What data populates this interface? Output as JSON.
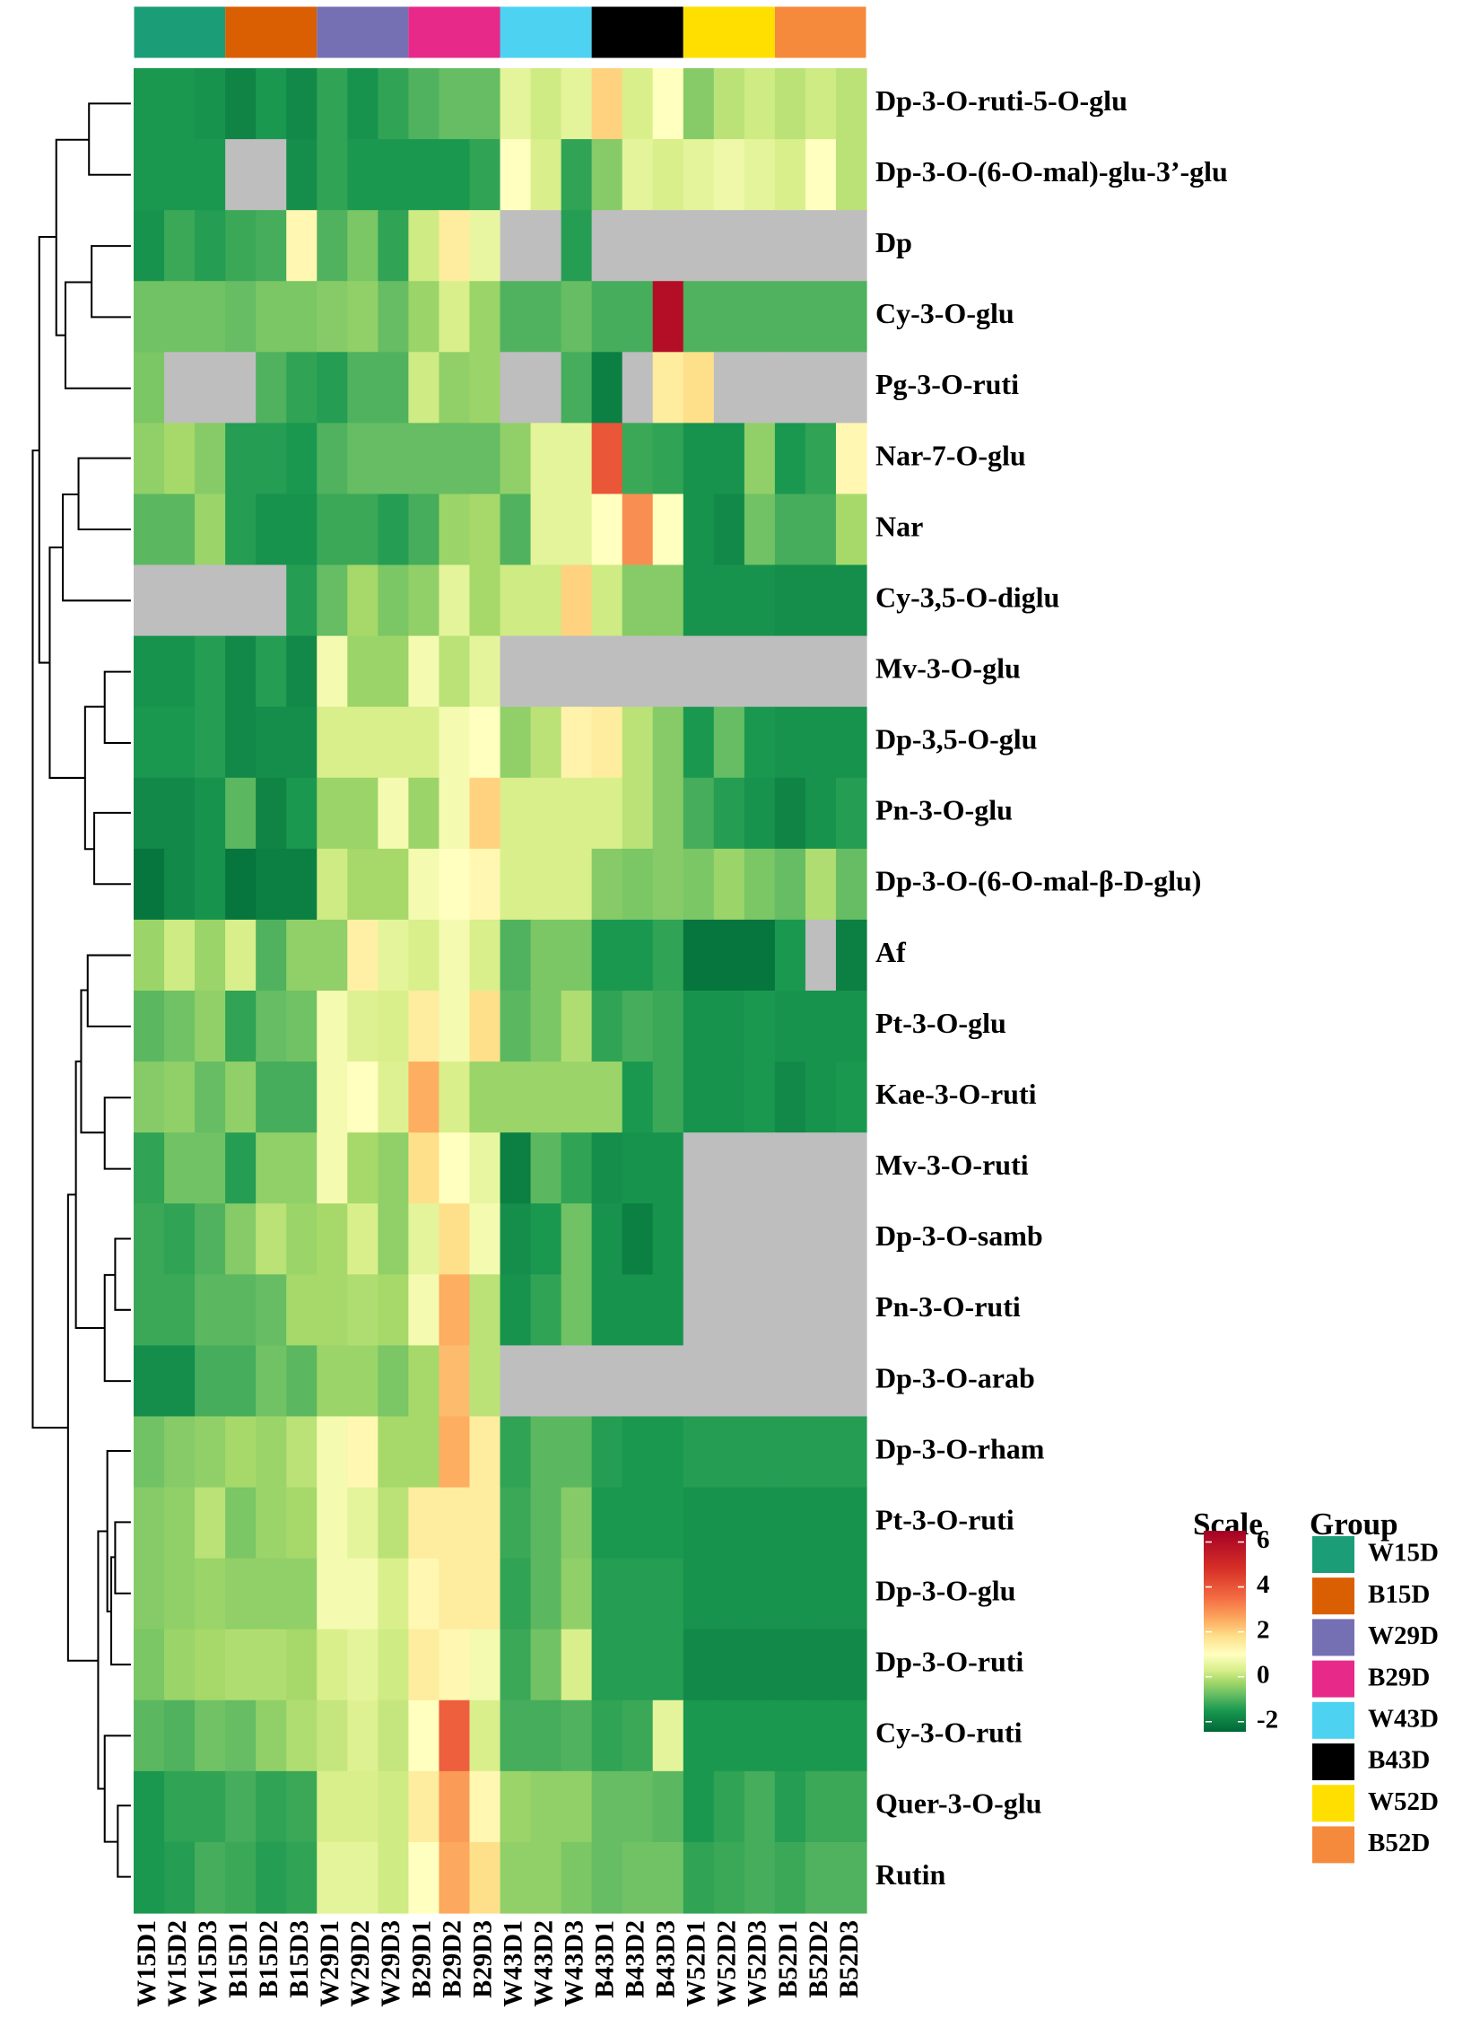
{
  "chart_data": {
    "type": "heatmap",
    "rows": [
      "Dp-3-O-ruti-5-O-glu",
      "Dp-3-O-(6-O-mal)-glu-3’-glu",
      "Dp",
      "Cy-3-O-glu",
      "Pg-3-O-ruti",
      "Nar-7-O-glu",
      "Nar",
      "Cy-3,5-O-diglu",
      "Mv-3-O-glu",
      "Dp-3,5-O-glu",
      "Pn-3-O-glu",
      "Dp-3-O-(6-O-mal-β-D-glu)",
      "Af",
      "Pt-3-O-glu",
      "Kae-3-O-ruti",
      "Mv-3-O-ruti",
      "Dp-3-O-samb",
      "Pn-3-O-ruti",
      "Dp-3-O-arab",
      "Dp-3-O-rham",
      "Pt-3-O-ruti",
      "Dp-3-O-glu",
      "Dp-3-O-ruti",
      "Cy-3-O-ruti",
      "Quer-3-O-glu",
      "Rutin"
    ],
    "columns": [
      "W15D1",
      "W15D2",
      "W15D3",
      "B15D1",
      "B15D2",
      "B15D3",
      "W29D1",
      "W29D2",
      "W29D3",
      "B29D1",
      "B29D2",
      "B29D3",
      "W43D1",
      "W43D2",
      "W43D3",
      "B43D1",
      "B43D2",
      "B43D3",
      "W52D1",
      "W52D2",
      "W52D3",
      "B52D1",
      "B52D2",
      "B52D3"
    ],
    "values": [
      [
        -1.5,
        -1.5,
        -1.6,
        -1.9,
        -1.5,
        -1.8,
        -1.3,
        -1.6,
        -1.3,
        -1,
        -0.8,
        -0.8,
        0.5,
        0.2,
        0.5,
        2,
        0.3,
        1,
        -0.5,
        0,
        0.2,
        0,
        0.2,
        0
      ],
      [
        -1.5,
        -1.5,
        -1.5,
        null,
        null,
        -1.7,
        -1.3,
        -1.5,
        -1.5,
        -1.5,
        -1.5,
        -1.3,
        1,
        0.3,
        -1.3,
        -0.5,
        0.5,
        0.3,
        0.5,
        0.7,
        0.5,
        0.3,
        1,
        0
      ],
      [
        -1.6,
        -1.2,
        -1.4,
        -1.2,
        -1.1,
        1.2,
        -1,
        -0.6,
        -1.3,
        0.2,
        1.5,
        0.6,
        null,
        null,
        -1.4,
        null,
        null,
        null,
        null,
        null,
        null,
        null,
        null,
        null
      ],
      [
        -0.7,
        -0.7,
        -0.7,
        -0.8,
        -0.6,
        -0.6,
        -0.5,
        -0.4,
        -0.8,
        -0.3,
        0.3,
        -0.3,
        -1,
        -1,
        -0.8,
        -1.1,
        -1.1,
        6,
        -1,
        -1,
        -1,
        -1,
        -1,
        -1
      ],
      [
        -0.6,
        null,
        null,
        null,
        -1,
        -1.3,
        -1.4,
        -1,
        -1,
        0.2,
        -0.4,
        -0.3,
        null,
        null,
        -1.1,
        -2,
        null,
        1.5,
        1.8,
        null,
        null,
        null,
        null,
        null
      ],
      [
        -0.4,
        -0.2,
        -0.5,
        -1.4,
        -1.4,
        -1.5,
        -1,
        -0.8,
        -0.8,
        -0.8,
        -0.8,
        -0.8,
        -0.4,
        0.5,
        0.5,
        4,
        -1.2,
        -1.3,
        -1.6,
        -1.6,
        -0.4,
        -1.5,
        -1.3,
        1.2
      ],
      [
        -0.9,
        -0.9,
        -0.3,
        -1.4,
        -1.6,
        -1.6,
        -1.2,
        -1.2,
        -1.4,
        -1.1,
        -0.3,
        -0.2,
        -1,
        0.5,
        0.5,
        1,
        3,
        1,
        -1.6,
        -1.8,
        -0.7,
        -1.1,
        -1.1,
        -0.2
      ],
      [
        null,
        null,
        null,
        null,
        null,
        -1.4,
        -0.8,
        -0.2,
        -0.6,
        -0.4,
        0.5,
        -0.2,
        0.2,
        0.2,
        2,
        0.2,
        -0.5,
        -0.5,
        -1.6,
        -1.6,
        -1.6,
        -1.7,
        -1.7,
        -1.7
      ],
      [
        -1.6,
        -1.6,
        -1.4,
        -1.8,
        -1.4,
        -1.8,
        0.8,
        -0.3,
        -0.3,
        0.8,
        0,
        0.5,
        null,
        null,
        null,
        null,
        null,
        null,
        null,
        null,
        null,
        null,
        null,
        null
      ],
      [
        -1.5,
        -1.5,
        -1.4,
        -1.8,
        -1.7,
        -1.7,
        0.3,
        0.3,
        0.3,
        0.3,
        0.8,
        1,
        -0.4,
        0,
        1.3,
        1.5,
        0,
        -0.5,
        -1.5,
        -0.8,
        -1.5,
        -1.6,
        -1.6,
        -1.6
      ],
      [
        -1.8,
        -1.8,
        -1.6,
        -0.9,
        -1.9,
        -1.5,
        -0.3,
        -0.3,
        0.8,
        -0.3,
        0.8,
        2,
        0.3,
        0.3,
        0.3,
        0.3,
        0,
        -0.5,
        -1.1,
        -1.4,
        -1.6,
        -1.9,
        -1.6,
        -1.4
      ],
      [
        -2.2,
        -1.8,
        -1.6,
        -2.2,
        -2,
        -2,
        0.2,
        -0.2,
        -0.2,
        0.8,
        1,
        1.2,
        0.3,
        0.3,
        0.3,
        -0.5,
        -0.6,
        -0.5,
        -0.6,
        -0.3,
        -0.6,
        -0.8,
        -0.1,
        -0.8
      ],
      [
        -0.3,
        0.2,
        -0.3,
        0.3,
        -1,
        -0.4,
        -0.4,
        1.4,
        0.5,
        0.3,
        0.8,
        0.3,
        -1,
        -0.6,
        -0.6,
        -1.5,
        -1.5,
        -1.3,
        -2.2,
        -2.2,
        -2.2,
        -1.5,
        null,
        -2
      ],
      [
        -0.9,
        -0.7,
        -0.4,
        -1.3,
        -0.8,
        -0.7,
        0.8,
        0.4,
        0.3,
        1.5,
        0.8,
        1.8,
        -0.9,
        -0.6,
        -0.1,
        -1.3,
        -1.1,
        -1.2,
        -1.6,
        -1.6,
        -1.5,
        -1.6,
        -1.6,
        -1.6
      ],
      [
        -0.5,
        -0.4,
        -0.8,
        -0.4,
        -1.1,
        -1.1,
        0.8,
        1,
        0.4,
        2.5,
        0.3,
        -0.3,
        -0.3,
        -0.3,
        -0.3,
        -0.3,
        -1.5,
        -1.2,
        -1.6,
        -1.6,
        -1.5,
        -1.8,
        -1.6,
        -1.5
      ],
      [
        -1.3,
        -0.7,
        -0.7,
        -1.4,
        -0.4,
        -0.4,
        0.8,
        -0.2,
        -0.4,
        1.8,
        1,
        0.6,
        -2,
        -0.9,
        -1.3,
        -1.7,
        -1.6,
        -1.6,
        null,
        null,
        null,
        null,
        null,
        null
      ],
      [
        -1.2,
        -1.3,
        -1,
        -0.5,
        0,
        -0.3,
        -0.2,
        0.3,
        -0.4,
        0.5,
        1.8,
        0.8,
        -1.7,
        -1.5,
        -0.7,
        -1.6,
        -2,
        -1.6,
        null,
        null,
        null,
        null,
        null,
        null
      ],
      [
        -1.2,
        -1.2,
        -0.9,
        -0.9,
        -0.8,
        -0.2,
        -0.2,
        -0.1,
        -0.2,
        0.8,
        2.5,
        0,
        -1.6,
        -1.3,
        -0.7,
        -1.6,
        -1.6,
        -1.6,
        null,
        null,
        null,
        null,
        null,
        null
      ],
      [
        -1.7,
        -1.7,
        -1.1,
        -1.1,
        -0.7,
        -0.9,
        -0.3,
        -0.3,
        -0.6,
        -0.2,
        2.3,
        0,
        null,
        null,
        null,
        null,
        null,
        null,
        null,
        null,
        null,
        null,
        null,
        null
      ],
      [
        -0.7,
        -0.5,
        -0.4,
        -0.2,
        -0.3,
        0,
        0.8,
        1.2,
        -0.2,
        -0.2,
        2.5,
        1.5,
        -1.3,
        -0.9,
        -0.9,
        -1.4,
        -1.5,
        -1.5,
        -1.4,
        -1.4,
        -1.4,
        -1.4,
        -1.4,
        -1.4
      ],
      [
        -0.5,
        -0.4,
        0,
        -0.6,
        -0.3,
        -0.2,
        0.8,
        0.5,
        0,
        1.5,
        1.5,
        1.5,
        -1.2,
        -0.9,
        -0.5,
        -1.5,
        -1.5,
        -1.5,
        -1.6,
        -1.6,
        -1.6,
        -1.6,
        -1.6,
        -1.6
      ],
      [
        -0.5,
        -0.4,
        -0.3,
        -0.4,
        -0.4,
        -0.4,
        0.8,
        0.8,
        0.3,
        1.2,
        1.5,
        1.5,
        -1.3,
        -0.9,
        -0.4,
        -1.4,
        -1.4,
        -1.4,
        -1.6,
        -1.6,
        -1.6,
        -1.6,
        -1.6,
        -1.6
      ],
      [
        -0.6,
        -0.3,
        -0.2,
        -0.1,
        -0.1,
        -0.2,
        0.3,
        0.5,
        0.2,
        1.5,
        1.2,
        0.8,
        -1.2,
        -0.7,
        0.3,
        -1.4,
        -1.4,
        -1.4,
        -1.8,
        -1.8,
        -1.8,
        -1.8,
        -1.8,
        -1.8
      ],
      [
        -0.9,
        -1,
        -0.7,
        -0.8,
        -0.4,
        -0.1,
        0.1,
        0.4,
        0.1,
        1,
        3.8,
        0.3,
        -1.1,
        -1.1,
        -1,
        -1.3,
        -1.2,
        0.5,
        -1.5,
        -1.5,
        -1.5,
        -1.5,
        -1.5,
        -1.5
      ],
      [
        -1.5,
        -1.3,
        -1.3,
        -1.1,
        -1.3,
        -1.2,
        0.3,
        0.3,
        0.2,
        1.5,
        2.8,
        1.2,
        -0.3,
        -0.4,
        -0.4,
        -0.8,
        -0.8,
        -0.9,
        -1.5,
        -1.3,
        -1.1,
        -1.4,
        -1.2,
        -1.2
      ],
      [
        -1.5,
        -1.4,
        -1.1,
        -1.2,
        -1.4,
        -1.3,
        0.5,
        0.5,
        0.2,
        1,
        2.6,
        1.8,
        -0.4,
        -0.4,
        -0.6,
        -0.8,
        -0.7,
        -0.7,
        -1.3,
        -1.2,
        -1.1,
        -1.2,
        -1,
        -1
      ]
    ],
    "missing_color": "#bebebe",
    "clim": [
      -2.45,
      6.5
    ],
    "colorscale": [
      {
        "value": -2.45,
        "color": "#006837"
      },
      {
        "value": -1.5,
        "color": "#1a9850"
      },
      {
        "value": -0.8,
        "color": "#66bd63"
      },
      {
        "value": -0.2,
        "color": "#a6d96a"
      },
      {
        "value": 0.3,
        "color": "#d9ef8b"
      },
      {
        "value": 1,
        "color": "#ffffbf"
      },
      {
        "value": 1.8,
        "color": "#fee08b"
      },
      {
        "value": 2.5,
        "color": "#fdae61"
      },
      {
        "value": 3.5,
        "color": "#f46d43"
      },
      {
        "value": 4.8,
        "color": "#d73027"
      },
      {
        "value": 6.5,
        "color": "#a50026"
      }
    ],
    "scale_title": "Scale",
    "scale_ticks": [
      -2,
      0,
      2,
      4,
      6
    ],
    "group_title": "Group",
    "groups": [
      {
        "name": "W15D",
        "color": "#1b9e77"
      },
      {
        "name": "B15D",
        "color": "#d95f02"
      },
      {
        "name": "W29D",
        "color": "#7570b3"
      },
      {
        "name": "B29D",
        "color": "#e7298a"
      },
      {
        "name": "W43D",
        "color": "#4dd2f2"
      },
      {
        "name": "B43D",
        "color": "#000000"
      },
      {
        "name": "W52D",
        "color": "#ffdf00"
      },
      {
        "name": "B52D",
        "color": "#f58a3c"
      }
    ]
  }
}
